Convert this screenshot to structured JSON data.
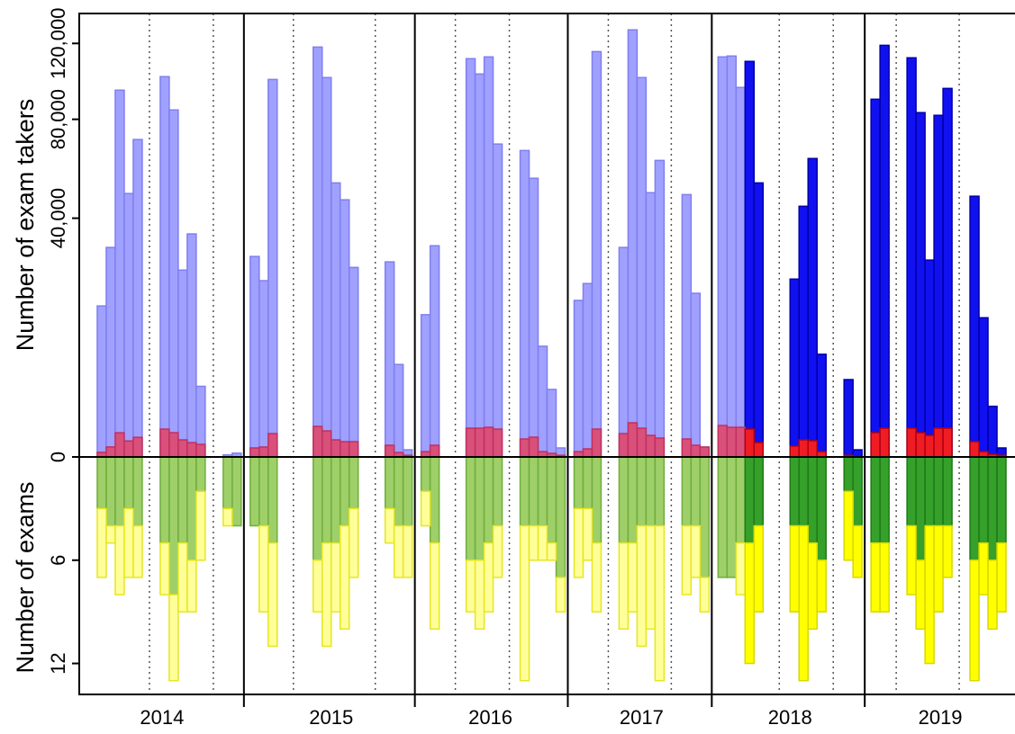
{
  "chart_data": {
    "type": "mirrored-bar",
    "y_label": "Number of exam takers",
    "y2_label": "Number of exams",
    "yscale": "sqrt",
    "ylim": [
      0,
      138000
    ],
    "yticks": [
      0,
      {
        "value": 40000,
        "label": "40,000"
      },
      {
        "value": 80000,
        "label": "80,000"
      },
      {
        "value": 120000,
        "label": "120,000"
      }
    ],
    "y2lim": [
      0,
      13.8
    ],
    "y2ticks": [
      6,
      12
    ],
    "xlim": [
      0,
      104
    ],
    "xticks": [
      {
        "value": 9.2,
        "label": "2014"
      },
      {
        "value": 28,
        "label": "2015"
      },
      {
        "value": 45.7,
        "label": "2016"
      },
      {
        "value": 62.5,
        "label": "2017"
      },
      {
        "value": 79,
        "label": "2018"
      },
      {
        "value": 95.7,
        "label": "2019"
      }
    ],
    "year_lines": [
      18.3,
      37.3,
      54.3,
      70.3,
      87.3
    ],
    "term_lines": [
      7.8,
      14.9,
      23.8,
      32.9,
      41.8,
      47.8,
      58.8,
      65.8,
      77.8,
      83.8,
      90.8,
      97.8
    ],
    "dark_from": 74,
    "x": [
      2,
      3,
      4,
      5,
      6,
      9,
      10,
      11,
      12,
      13,
      16,
      17,
      19,
      20,
      21,
      26,
      27,
      28,
      29,
      30,
      34,
      35,
      36,
      38,
      39,
      43,
      44,
      45,
      46,
      49,
      50,
      51,
      52,
      53,
      55,
      56,
      57,
      60,
      61,
      62,
      63,
      64,
      67,
      68,
      69,
      71,
      72,
      73,
      74,
      75,
      79,
      80,
      81,
      82,
      85,
      86,
      88,
      89,
      92,
      93,
      94,
      95,
      96,
      99,
      100,
      101,
      102
    ],
    "series": [
      {
        "axis": "y",
        "color": "#a0a0ff",
        "edge": "#7f7ff0",
        "color_dark": "#1010f0",
        "edge_dark": "#0000a8",
        "values": [
          16000,
          30800,
          94400,
          48700,
          70700,
          101500,
          84500,
          24500,
          34900,
          3500,
          3,
          10,
          28200,
          21800,
          100000,
          117900,
          101000,
          52700,
          46400,
          25200,
          26700,
          6000,
          36,
          14200,
          31300,
          111300,
          102900,
          112300,
          68700,
          65900,
          54500,
          8600,
          3200,
          57,
          17200,
          21100,
          115300,
          30800,
          128000,
          101000,
          49000,
          61700,
          48300,
          18800,
          69,
          112300,
          112800,
          95800,
          109800,
          52700,
          22200,
          44100,
          62500,
          7400,
          4200,
          36,
          89800,
          118900,
          111800,
          83200,
          27200,
          81900,
          95300,
          47700,
          13600,
          1800,
          57
        ]
      },
      {
        "axis": "y",
        "color": "#d9507a",
        "edge": "#c03060",
        "color_dark": "#f01c24",
        "edge_dark": "#b00010",
        "values": [
          15,
          70,
          410,
          180,
          270,
          545,
          413,
          205,
          145,
          111,
          null,
          null,
          57,
          69,
          383,
          655,
          477,
          205,
          164,
          164,
          96,
          14,
          2,
          20,
          96,
          580,
          580,
          617,
          545,
          227,
          274,
          20,
          9,
          2,
          20,
          46,
          545,
          383,
          819,
          580,
          327,
          250,
          227,
          96,
          69,
          695,
          617,
          617,
          545,
          145,
          82,
          205,
          184,
          20,
          2,
          null,
          413,
          580,
          580,
          413,
          327,
          580,
          580,
          164,
          20,
          5,
          2
        ]
      },
      {
        "axis": "y2",
        "color": "#9fcf68",
        "edge": "#6fae3c",
        "color_dark": "#35a02a",
        "edge_dark": "#1f7a18",
        "values": [
          3,
          4,
          4,
          3,
          4,
          5,
          8,
          5,
          6,
          2,
          3,
          4,
          4,
          4,
          5,
          6,
          5,
          5,
          4,
          3,
          3,
          4,
          4,
          2,
          5,
          6,
          6,
          5,
          4,
          4,
          4,
          4,
          5,
          7,
          3,
          3,
          5,
          5,
          5,
          4,
          4,
          4,
          4,
          4,
          7,
          7,
          7,
          5,
          5,
          4,
          4,
          4,
          5,
          6,
          2,
          4,
          5,
          5,
          4,
          6,
          4,
          4,
          4,
          6,
          5,
          6,
          5
        ]
      },
      {
        "axis": "y2",
        "color": "#ffff9a",
        "edge": "#e6e620",
        "color_dark": "#ffff00",
        "edge_dark": "#d8d800",
        "values": [
          4,
          1,
          4,
          4,
          3,
          3,
          5,
          4,
          3,
          4,
          1,
          0,
          0,
          5,
          6,
          3,
          6,
          4,
          6,
          4,
          2,
          3,
          3,
          2,
          5,
          3,
          4,
          4,
          3,
          9,
          2,
          2,
          1,
          2,
          4,
          3,
          4,
          5,
          4,
          7,
          6,
          9,
          4,
          3,
          2,
          0,
          0,
          3,
          7,
          5,
          5,
          9,
          5,
          3,
          4,
          3,
          4,
          4,
          4,
          4,
          8,
          5,
          3,
          7,
          3,
          4,
          4
        ]
      }
    ]
  }
}
